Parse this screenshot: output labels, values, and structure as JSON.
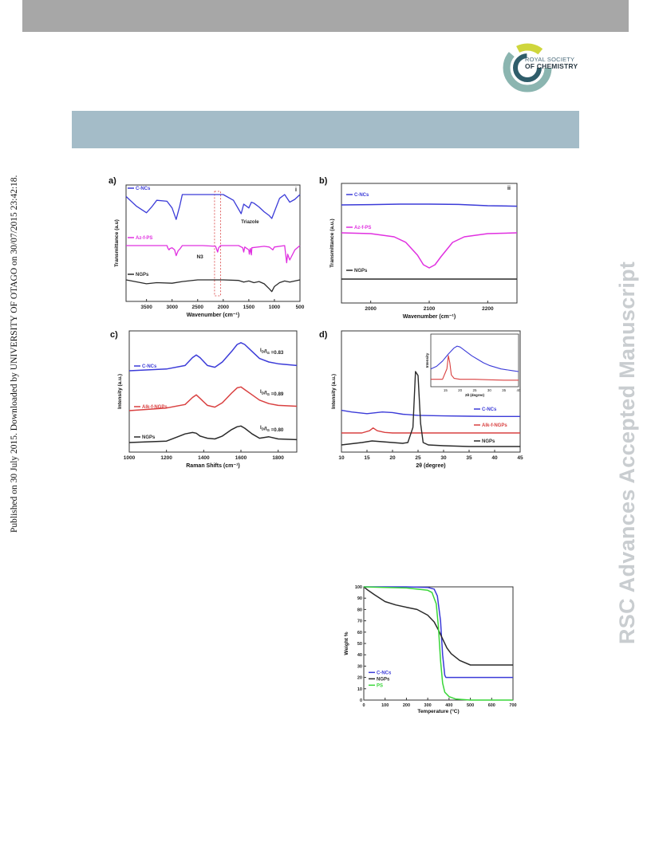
{
  "page": {
    "side_note": "Published on 30 July 2015. Downloaded by UNIVERSITY OF OTAGO on 30/07/2015 23:42:18.",
    "watermark": "RSC Advances Accepted Manuscript",
    "logo_text": [
      "ROYAL SOCIETY",
      "OF CHEMISTRY"
    ]
  },
  "colors": {
    "blue": "#3b3bd8",
    "magenta": "#e030e0",
    "black": "#2a2a2a",
    "red": "#d94040",
    "green": "#39d639",
    "header_gray": "#a7a7a7",
    "header_blue": "#a4bcc8"
  },
  "chart_data": [
    {
      "panel": "a)",
      "corner_label": "i",
      "type": "line",
      "xlabel": "Wavenumber (cm⁻¹)",
      "ylabel": "Transmittance (a.u)",
      "xlim": [
        3900,
        500
      ],
      "xticks": [
        3500,
        3000,
        2500,
        2000,
        1500,
        1000,
        500
      ],
      "series": [
        {
          "name": "C-NCs",
          "x": [
            3900,
            3700,
            3500,
            3400,
            3300,
            3100,
            3000,
            2920,
            2850,
            2800,
            2600,
            2400,
            2200,
            2100,
            2000,
            1800,
            1650,
            1600,
            1500,
            1450,
            1400,
            1300,
            1200,
            1100,
            1050,
            1000,
            900,
            800,
            700,
            600,
            500
          ],
          "y": [
            -0.2,
            -1.2,
            -1.9,
            -1.3,
            -0.6,
            -0.7,
            -1.4,
            -2.6,
            -1.2,
            0,
            0,
            0,
            0,
            0,
            0,
            -0.6,
            -2.0,
            -1.0,
            -1.4,
            -0.8,
            -0.9,
            -1.3,
            -1.8,
            -2.2,
            -2.5,
            -1.8,
            -0.4,
            0,
            -0.8,
            -0.5,
            0
          ]
        },
        {
          "name": "Az-f-PS",
          "x": [
            3900,
            3100,
            3080,
            3060,
            3040,
            3000,
            2950,
            2920,
            2880,
            2850,
            2800,
            2400,
            2150,
            2110,
            2090,
            2050,
            1700,
            1620,
            1600,
            1580,
            1500,
            1490,
            1470,
            1450,
            1440,
            1200,
            1100,
            1030,
            1000,
            800,
            760,
            740,
            700,
            600,
            500
          ],
          "y": [
            0,
            0,
            -0.4,
            -0.6,
            -0.4,
            -0.3,
            -0.6,
            -1.4,
            -0.7,
            -0.5,
            0,
            0,
            -0.1,
            -0.9,
            -0.3,
            0,
            0,
            -0.3,
            -0.9,
            -0.2,
            -0.6,
            -1.2,
            -0.4,
            -1.3,
            -0.3,
            -0.1,
            -0.2,
            -0.6,
            -0.2,
            0,
            -2.4,
            -1.2,
            -2.0,
            -0.6,
            0
          ]
        },
        {
          "name": "NGPs",
          "x": [
            3900,
            3500,
            3300,
            3000,
            2800,
            2500,
            2000,
            1700,
            1600,
            1500,
            1400,
            1300,
            1200,
            1100,
            1050,
            1000,
            900,
            800,
            700,
            600,
            500
          ],
          "y": [
            0,
            -0.7,
            -0.5,
            -0.6,
            -0.3,
            0,
            0,
            -0.1,
            -0.4,
            -0.2,
            -0.5,
            -0.3,
            -0.7,
            -1.6,
            -2.1,
            -1.2,
            -0.5,
            -0.2,
            -0.4,
            -0.2,
            0
          ]
        }
      ],
      "annotations": [
        "Triazole",
        "N3"
      ]
    },
    {
      "panel": "b)",
      "corner_label": "ii",
      "type": "line",
      "xlabel": "Wavenumber (cm⁻¹)",
      "ylabel": "Transmittance (a.u.)",
      "xlim": [
        1950,
        2250
      ],
      "xticks": [
        2000,
        2100,
        2200
      ],
      "series": [
        {
          "name": "C-NCs",
          "x": [
            1950,
            2000,
            2050,
            2100,
            2150,
            2200,
            2250
          ],
          "y": [
            0,
            0.02,
            0.05,
            0.05,
            0.03,
            -0.05,
            -0.08
          ]
        },
        {
          "name": "Az-f-PS",
          "x": [
            1950,
            2000,
            2040,
            2060,
            2080,
            2090,
            2100,
            2110,
            2120,
            2140,
            2160,
            2200,
            2250
          ],
          "y": [
            0,
            -0.05,
            -0.25,
            -0.6,
            -1.4,
            -2.0,
            -2.2,
            -2.0,
            -1.5,
            -0.6,
            -0.25,
            -0.05,
            0
          ]
        },
        {
          "name": "NGPs",
          "x": [
            1950,
            2100,
            2250
          ],
          "y": [
            0,
            0,
            0
          ]
        }
      ]
    },
    {
      "panel": "c)",
      "type": "line",
      "xlabel": "Raman Shifts (cm⁻¹)",
      "ylabel": "Intensity (a.u.)",
      "xlim": [
        1000,
        1900
      ],
      "xticks": [
        1000,
        1200,
        1400,
        1600,
        1800
      ],
      "series": [
        {
          "name": "C-NCs",
          "x": [
            1000,
            1200,
            1300,
            1340,
            1360,
            1380,
            1420,
            1460,
            1500,
            1550,
            1580,
            1600,
            1620,
            1660,
            1700,
            1750,
            1800,
            1900
          ],
          "y": [
            0,
            0.2,
            0.6,
            1.5,
            1.8,
            1.5,
            0.6,
            0.4,
            1.0,
            2.2,
            3.0,
            3.2,
            3.0,
            2.2,
            1.4,
            1.0,
            0.8,
            0.6
          ]
        },
        {
          "name": "Alk-f-NGPs",
          "x": [
            1000,
            1200,
            1300,
            1340,
            1360,
            1380,
            1420,
            1460,
            1500,
            1550,
            1580,
            1600,
            1620,
            1660,
            1700,
            1750,
            1800,
            1900
          ],
          "y": [
            0,
            0.3,
            0.7,
            1.5,
            1.8,
            1.4,
            0.6,
            0.4,
            0.9,
            2.0,
            2.6,
            2.7,
            2.4,
            1.8,
            1.2,
            0.8,
            0.6,
            0.5
          ]
        },
        {
          "name": "NGPs",
          "x": [
            1000,
            1200,
            1260,
            1300,
            1340,
            1360,
            1380,
            1420,
            1460,
            1500,
            1550,
            1580,
            1600,
            1620,
            1660,
            1700,
            1750,
            1800,
            1900
          ],
          "y": [
            0,
            0.2,
            0.8,
            1.2,
            1.4,
            1.3,
            0.9,
            0.6,
            0.5,
            0.9,
            1.8,
            2.2,
            2.3,
            2.0,
            1.2,
            0.6,
            0.8,
            0.5,
            0.4
          ]
        }
      ],
      "annotations": [
        {
          "series": "C-NCs",
          "text": "I",
          "sub": "D",
          "text2": "/I",
          "sub2": "G",
          "text3": " =0.83"
        },
        {
          "series": "Alk-f-NGPs",
          "text": "I",
          "sub": "D",
          "text2": "/I",
          "sub2": "G",
          "text3": " =0.89"
        },
        {
          "series": "NGPs",
          "text": "I",
          "sub": "D",
          "text2": "/I",
          "sub2": "G",
          "text3": " =0.80"
        }
      ]
    },
    {
      "panel": "d)",
      "type": "line",
      "xlabel": "2θ (degree)",
      "ylabel": "Intensity (a.u.)",
      "xlim": [
        10,
        45
      ],
      "xticks": [
        10,
        15,
        20,
        25,
        30,
        35,
        40,
        45
      ],
      "series": [
        {
          "name": "C-NCs",
          "x": [
            10,
            12,
            15,
            18,
            20,
            22,
            25,
            30,
            35,
            40,
            45
          ],
          "y": [
            2.2,
            1.9,
            1.6,
            1.9,
            1.8,
            1.5,
            1.3,
            1.2,
            1.15,
            1.1,
            1.1
          ]
        },
        {
          "name": "Alk-f-NGPs",
          "x": [
            10,
            14,
            15.5,
            16.2,
            17,
            18.5,
            20,
            25,
            30,
            35,
            40,
            45
          ],
          "y": [
            0,
            0,
            0.4,
            0.9,
            0.4,
            0.1,
            0,
            0,
            0,
            0,
            0,
            0
          ]
        },
        {
          "name": "NGPs",
          "x": [
            10,
            14,
            16,
            18,
            20,
            22,
            23,
            24,
            24.5,
            25,
            25.5,
            26,
            27,
            30,
            35,
            40,
            45
          ],
          "y": [
            0.3,
            0.6,
            0.8,
            0.7,
            0.6,
            0.5,
            0.6,
            2.5,
            9.5,
            9.0,
            3.0,
            0.6,
            0.3,
            0.2,
            0.1,
            0.1,
            0.1
          ]
        }
      ],
      "inset": {
        "xlabel": "2θ (degree)",
        "ylabel": "Intensity",
        "xlim": [
          10,
          40
        ],
        "xticks": [
          15,
          20,
          25,
          30,
          35,
          40
        ],
        "series": [
          {
            "name": "C-NCs",
            "x": [
              10,
              12,
              14,
              16,
              18,
              19,
              20,
              22,
              24,
              26,
              28,
              30,
              34,
              38,
              40
            ],
            "y": [
              1.3,
              1.6,
              2.2,
              3.0,
              3.7,
              3.9,
              3.8,
              3.3,
              2.8,
              2.4,
              2.0,
              1.7,
              1.3,
              1.1,
              1.0
            ]
          },
          {
            "name": "Alk-f-NGPs",
            "x": [
              10,
              14,
              15.5,
              16,
              16.5,
              17,
              18,
              20,
              25,
              30,
              35,
              40
            ],
            "y": [
              0.3,
              0.3,
              1.5,
              3.0,
              2.2,
              0.8,
              0.4,
              0.3,
              0.3,
              0.25,
              0.2,
              0.2
            ]
          }
        ]
      }
    },
    {
      "type": "line",
      "xlabel": "Temperature (°C)",
      "ylabel": "Weight %",
      "xlim": [
        0,
        700
      ],
      "ylim": [
        0,
        100
      ],
      "xticks": [
        0,
        100,
        200,
        300,
        400,
        500,
        600,
        700
      ],
      "yticks": [
        0,
        10,
        20,
        30,
        40,
        50,
        60,
        70,
        80,
        90,
        100
      ],
      "legend": "bottom-left",
      "series": [
        {
          "name": "C-NCs",
          "x": [
            0,
            100,
            200,
            300,
            330,
            345,
            360,
            370,
            380,
            385,
            400,
            700
          ],
          "y": [
            100,
            100,
            100,
            99.5,
            98,
            92,
            70,
            40,
            22,
            20,
            20,
            20
          ]
        },
        {
          "name": "NGPs",
          "x": [
            0,
            20,
            50,
            100,
            150,
            200,
            250,
            300,
            330,
            350,
            370,
            390,
            410,
            450,
            500,
            550,
            700
          ],
          "y": [
            100,
            97,
            93,
            87,
            84,
            82,
            80,
            75,
            69,
            62,
            54,
            46,
            41,
            35,
            31,
            31,
            31
          ]
        },
        {
          "name": "PS",
          "x": [
            0,
            100,
            200,
            300,
            320,
            340,
            350,
            360,
            370,
            380,
            400,
            430,
            460,
            500,
            700
          ],
          "y": [
            100,
            99.5,
            99,
            97,
            95,
            85,
            65,
            35,
            15,
            7,
            3,
            1,
            0.5,
            0,
            0
          ]
        }
      ]
    }
  ]
}
